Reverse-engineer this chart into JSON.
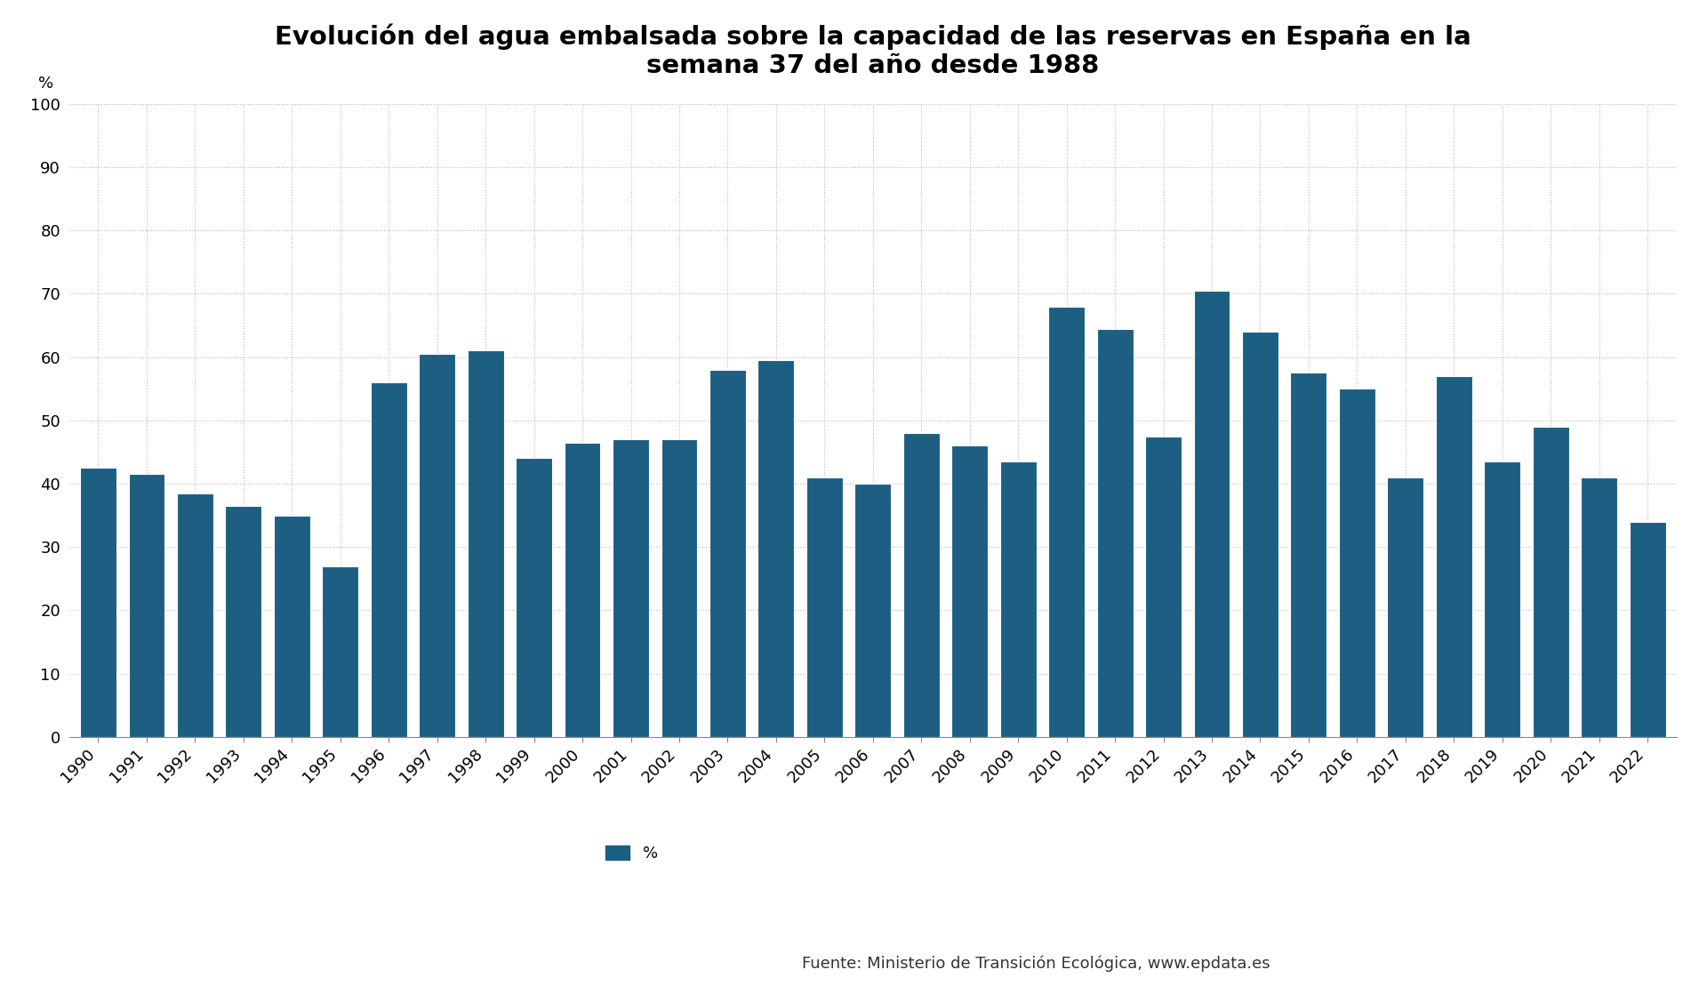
{
  "title": "Evolución del agua embalsada sobre la capacidad de las reservas en España en la\nsemana 37 del año desde 1988",
  "ylabel": "%",
  "years": [
    1990,
    1991,
    1992,
    1993,
    1994,
    1995,
    1996,
    1997,
    1998,
    1999,
    2000,
    2001,
    2002,
    2003,
    2004,
    2005,
    2006,
    2007,
    2008,
    2009,
    2010,
    2011,
    2012,
    2013,
    2014,
    2015,
    2016,
    2017,
    2018,
    2019,
    2020,
    2021,
    2022
  ],
  "values": [
    42.5,
    41.5,
    38.5,
    36.5,
    35.0,
    27.0,
    56.0,
    60.5,
    61.0,
    44.0,
    46.5,
    47.0,
    47.0,
    58.0,
    59.5,
    41.0,
    40.0,
    48.0,
    46.0,
    43.5,
    68.0,
    64.5,
    47.5,
    70.5,
    64.0,
    57.5,
    55.0,
    41.0,
    57.0,
    43.5,
    49.0,
    41.0,
    34.0
  ],
  "bar_color": "#1c5f82",
  "background_color": "#ffffff",
  "grid_color": "#bbbbbb",
  "ylim": [
    0,
    100
  ],
  "yticks": [
    0,
    10,
    20,
    30,
    40,
    50,
    60,
    70,
    80,
    90,
    100
  ],
  "legend_label": "%",
  "source_text": "Fuente: Ministerio de Transición Ecológica, www.epdata.es",
  "title_fontsize": 21,
  "axis_fontsize": 13,
  "legend_fontsize": 13
}
